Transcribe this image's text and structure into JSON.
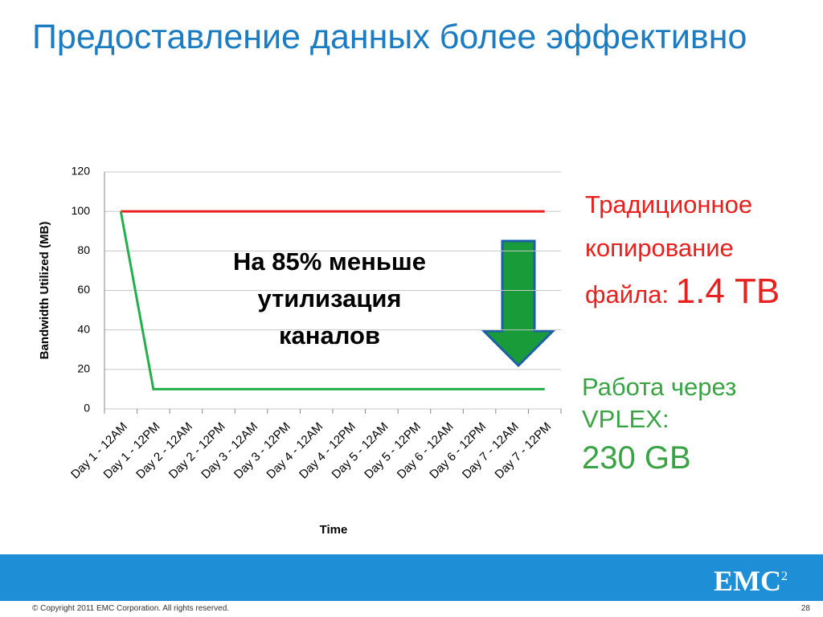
{
  "title": "Предоставление данных более эффективно",
  "chart_data": {
    "type": "line",
    "categories": [
      "Day 1 - 12AM",
      "Day 1 - 12PM",
      "Day 2 - 12AM",
      "Day 2 - 12PM",
      "Day 3 - 12AM",
      "Day 3 - 12PM",
      "Day 4 - 12AM",
      "Day 4 - 12PM",
      "Day 5 - 12AM",
      "Day 5 - 12PM",
      "Day 6 - 12AM",
      "Day 6 - 12PM",
      "Day 7 - 12AM",
      "Day 7 - 12PM"
    ],
    "series": [
      {
        "color": "#e8201e",
        "values": [
          100,
          100,
          100,
          100,
          100,
          100,
          100,
          100,
          100,
          100,
          100,
          100,
          100,
          100
        ]
      },
      {
        "color": "#22b04b",
        "values": [
          100,
          10,
          10,
          10,
          10,
          10,
          10,
          10,
          10,
          10,
          10,
          10,
          10,
          10
        ]
      }
    ],
    "xlabel": "Time",
    "ylabel": "Bandwidth Utilized (MB)",
    "ylim": [
      0,
      120
    ],
    "yticks": [
      0,
      20,
      40,
      60,
      80,
      100,
      120
    ],
    "grid": true,
    "annotation_lines": [
      "На 85% меньше",
      "утилизация",
      "каналов"
    ]
  },
  "traditional": {
    "label": "Традиционное копирование файла:",
    "value": "1.4 TB"
  },
  "vplex": {
    "label": "Работа через VPLEX:",
    "value": "230 GB"
  },
  "logo": {
    "text": "EMC",
    "sup": "2"
  },
  "footer": {
    "copyright": "© Copyright 2011 EMC Corporation. All rights reserved.",
    "page": "28"
  }
}
